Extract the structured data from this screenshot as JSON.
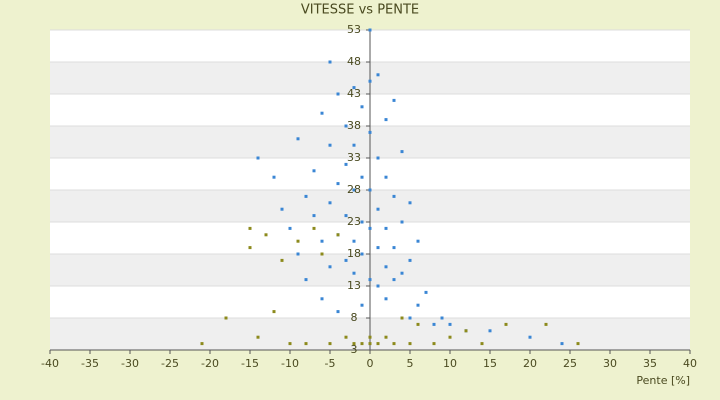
{
  "chart_data": {
    "type": "scatter",
    "title": "VITESSE vs PENTE",
    "x_label": "Pente [%]",
    "series": [
      {
        "color": "#3a86d4",
        "x": [
          -14,
          -12,
          -11,
          -10,
          -9,
          -9,
          -8,
          -8,
          -7,
          -7,
          -6,
          -6,
          -6,
          -5,
          -5,
          -5,
          -5,
          -4,
          -4,
          -4,
          -4,
          -3,
          -3,
          -3,
          -3,
          -2,
          -2,
          -2,
          -2,
          -2,
          -1,
          -1,
          -1,
          -1,
          -1,
          0,
          0,
          0,
          0,
          0,
          0,
          1,
          1,
          1,
          1,
          1,
          2,
          2,
          2,
          2,
          2,
          3,
          3,
          3,
          3,
          4,
          4,
          4,
          5,
          5,
          5,
          6,
          6,
          7,
          8,
          9,
          10,
          12,
          15,
          20,
          24
        ],
        "values": [
          33,
          30,
          25,
          22,
          36,
          18,
          27,
          14,
          24,
          31,
          40,
          20,
          11,
          48,
          35,
          26,
          16,
          43,
          29,
          21,
          9,
          38,
          32,
          24,
          17,
          44,
          35,
          28,
          20,
          15,
          41,
          30,
          23,
          18,
          10,
          53,
          45,
          37,
          28,
          22,
          14,
          46,
          33,
          25,
          19,
          13,
          39,
          30,
          22,
          16,
          11,
          42,
          27,
          19,
          14,
          34,
          23,
          15,
          26,
          17,
          8,
          20,
          10,
          12,
          7,
          8,
          7,
          6,
          6,
          5,
          4
        ]
      },
      {
        "color": "#8c8a1c",
        "x": [
          -21,
          -18,
          -15,
          -15,
          -14,
          -13,
          -12,
          -11,
          -10,
          -9,
          -8,
          -7,
          -6,
          -5,
          -4,
          -3,
          -2,
          -1,
          0,
          0,
          1,
          2,
          3,
          4,
          5,
          6,
          8,
          10,
          12,
          14,
          17,
          22,
          26
        ],
        "values": [
          4,
          8,
          19,
          22,
          5,
          21,
          9,
          17,
          4,
          20,
          4,
          22,
          18,
          4,
          21,
          5,
          4,
          4,
          5,
          4,
          4,
          5,
          4,
          8,
          4,
          7,
          4,
          5,
          6,
          4,
          7,
          7,
          4
        ]
      }
    ],
    "xlim": [
      -40,
      40
    ],
    "xticks": [
      -40,
      -35,
      -30,
      -25,
      -20,
      -15,
      -10,
      -5,
      0,
      5,
      10,
      15,
      20,
      25,
      30,
      35,
      40
    ],
    "ylim": [
      3,
      53
    ],
    "yticks": [
      3,
      8,
      13,
      18,
      23,
      28,
      33,
      38,
      43,
      48,
      53
    ],
    "grid": true,
    "banded": true
  }
}
